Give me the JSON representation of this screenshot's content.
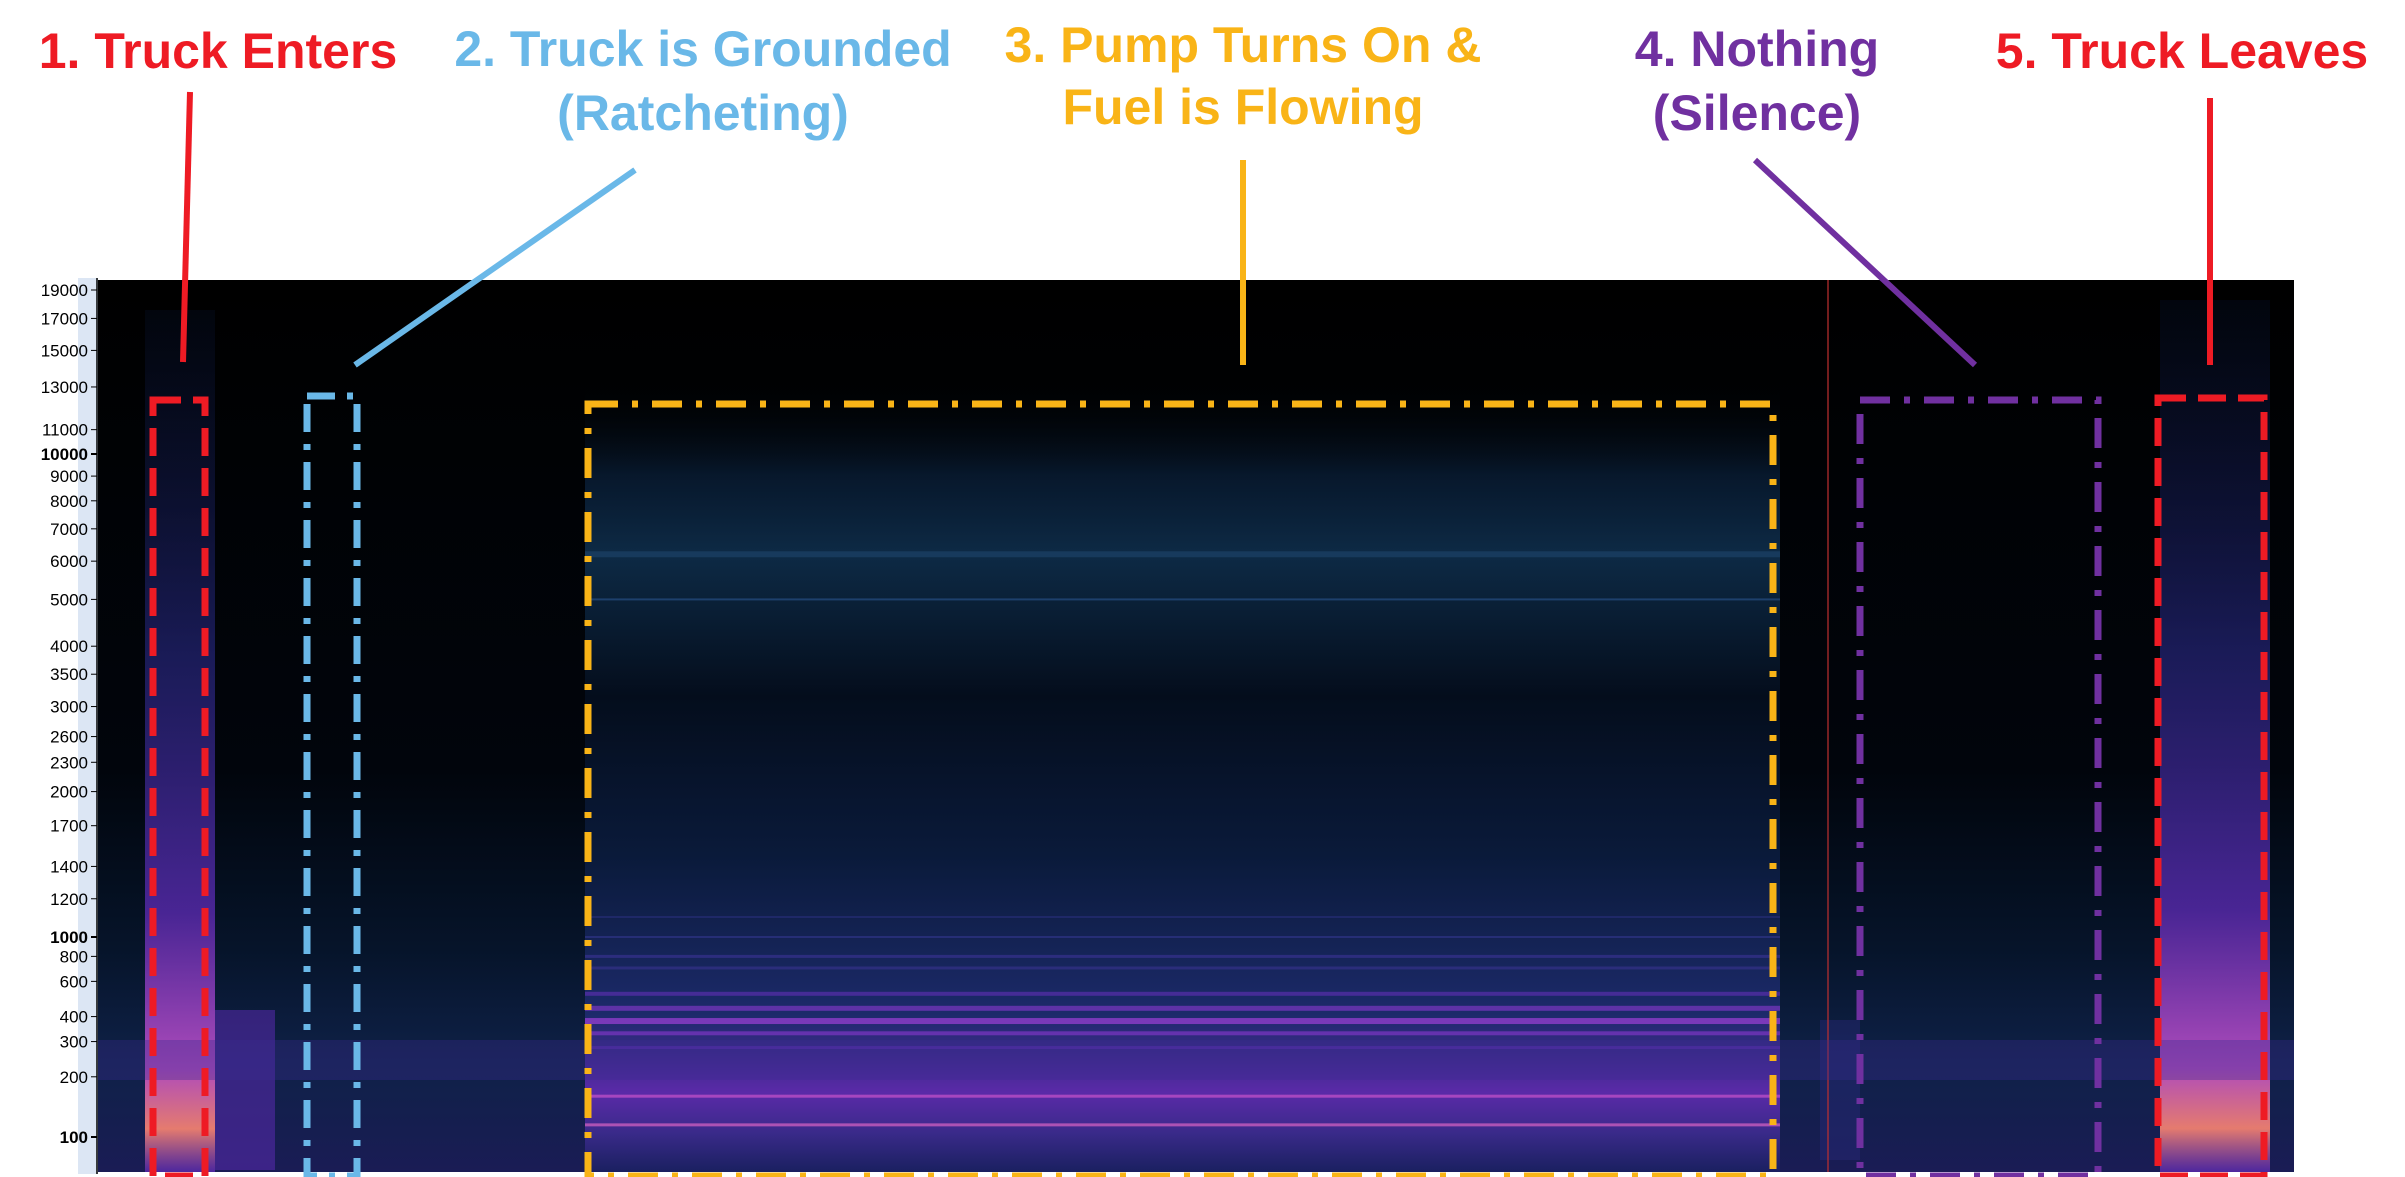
{
  "chart_data": {
    "type": "heatmap",
    "kind": "spectrogram",
    "y_scale": "log",
    "y_ticks": [
      19000,
      17000,
      15000,
      13000,
      11000,
      10000,
      9000,
      8000,
      7000,
      6000,
      5000,
      4000,
      3500,
      3000,
      2600,
      2300,
      2000,
      1700,
      1400,
      1200,
      1000,
      800,
      600,
      400,
      300,
      200,
      100
    ],
    "y_tick_labels": [
      "19000",
      "17000",
      "15000",
      "13000",
      "11000",
      "10000",
      "9000",
      "8000",
      "7000",
      "6000",
      "5000",
      "4000",
      "3500",
      "3000",
      "2600",
      "2300",
      "2000",
      "1700",
      "1400",
      "1200",
      "1000",
      "800",
      "600",
      "400",
      "300",
      "200",
      "100"
    ],
    "major_ticks": [
      10000,
      1000,
      100
    ],
    "colormap": [
      "#000000",
      "#0b1d33",
      "#1e3a6e",
      "#5522a0",
      "#8b2fc9",
      "#c24bd6",
      "#f06a8a",
      "#ffb060"
    ],
    "annotations": [
      {
        "id": "truck-enters",
        "line1": "1. Truck Enters",
        "line2": "",
        "color": "#ee1b24"
      },
      {
        "id": "truck-grounded",
        "line1": "2. Truck is Grounded",
        "line2": "(Ratcheting)",
        "color": "#6ab8e8"
      },
      {
        "id": "pump-on",
        "line1": "3. Pump Turns On &",
        "line2": "Fuel is Flowing",
        "color": "#f9b417"
      },
      {
        "id": "nothing",
        "line1": "4. Nothing",
        "line2": "(Silence)",
        "color": "#7030a0"
      },
      {
        "id": "truck-leaves",
        "line1": "5. Truck Leaves",
        "line2": "",
        "color": "#ee1b24"
      }
    ]
  }
}
